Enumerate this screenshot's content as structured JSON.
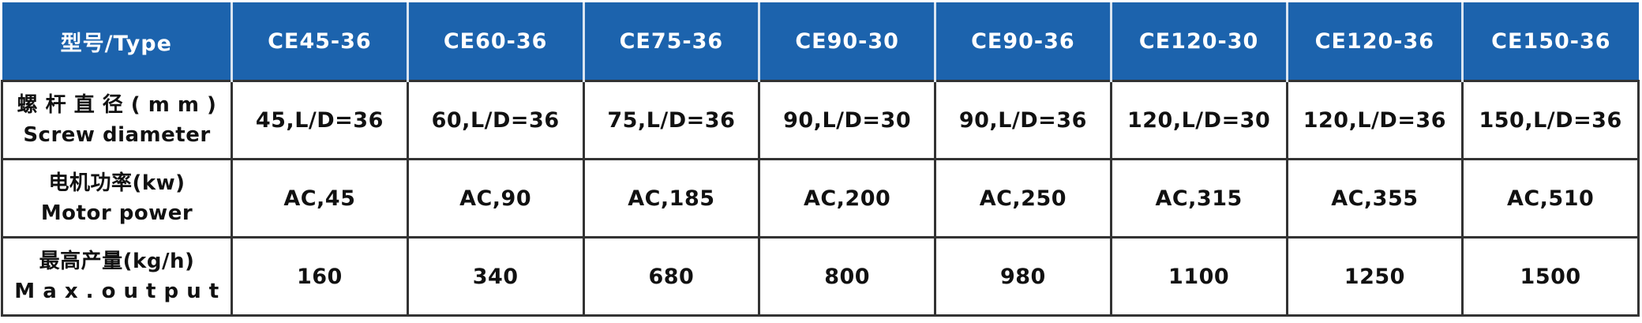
{
  "header": {
    "type_label": "型号/Type",
    "models": [
      "CE45-36",
      "CE60-36",
      "CE75-36",
      "CE90-30",
      "CE90-36",
      "CE120-30",
      "CE120-36",
      "CE150-36"
    ]
  },
  "rows": [
    {
      "label_cn": "螺 杆 直 径 ( m m )",
      "label_en": "Screw diameter",
      "values": [
        "45,L/D=36",
        "60,L/D=36",
        "75,L/D=36",
        "90,L/D=30",
        "90,L/D=36",
        "120,L/D=30",
        "120,L/D=36",
        "150,L/D=36"
      ]
    },
    {
      "label_cn": "电机功率(kw)",
      "label_en": "Motor power",
      "values": [
        "AC,45",
        "AC,90",
        "AC,185",
        "AC,200",
        "AC,250",
        "AC,315",
        "AC,355",
        "AC,510"
      ]
    },
    {
      "label_cn": "最高产量(kg/h)",
      "label_en": "M a x . o u t p u t",
      "values": [
        "160",
        "340",
        "680",
        "800",
        "980",
        "1100",
        "1250",
        "1500"
      ]
    }
  ],
  "colors": {
    "header_bg": "#1c63ad",
    "header_text": "#ffffff",
    "border": "#333333"
  }
}
